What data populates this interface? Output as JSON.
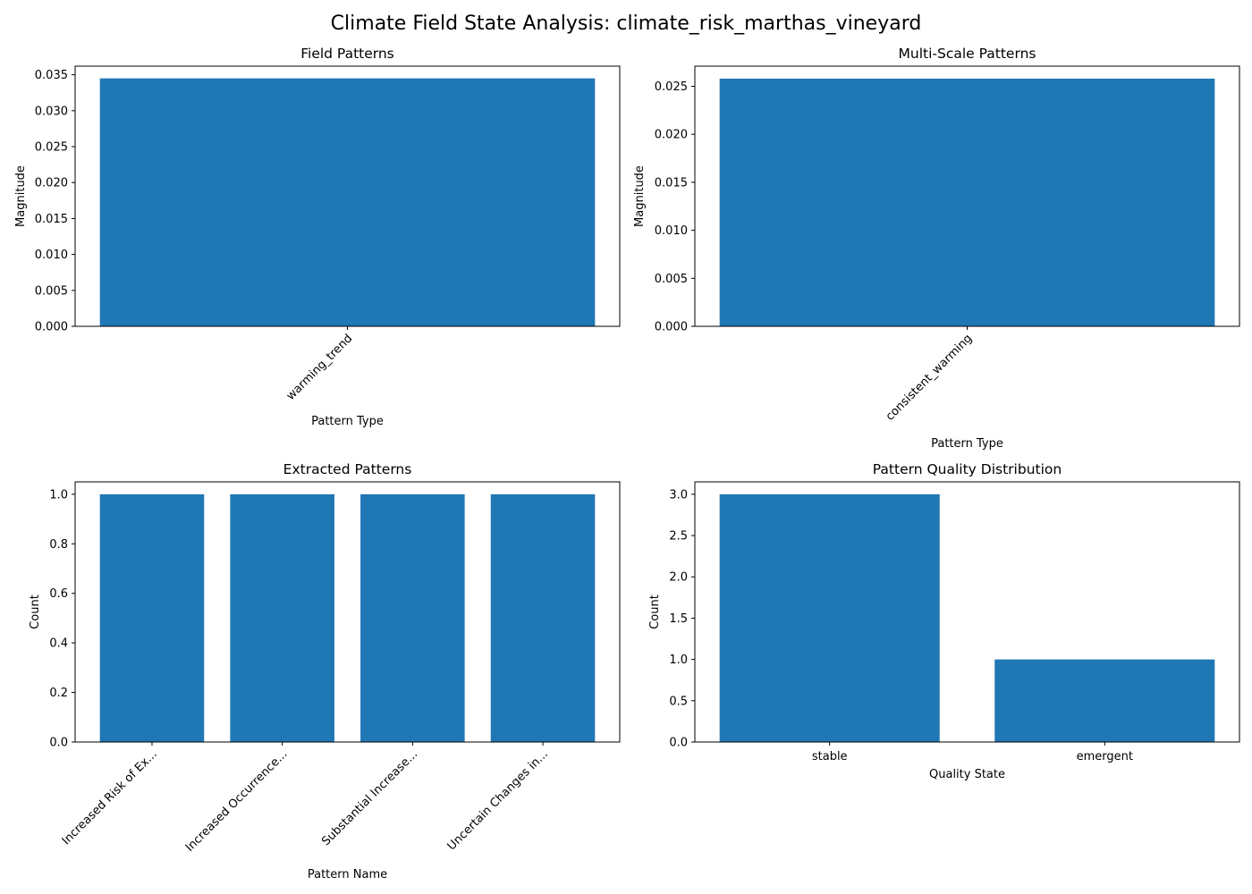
{
  "figure": {
    "title": "Climate Field State Analysis: climate_risk_marthas_vineyard"
  },
  "colors": {
    "bar": "#1f77b4",
    "axis": "#000000",
    "background": "#ffffff"
  },
  "chart_data": [
    {
      "id": "field-patterns",
      "type": "bar",
      "title": "Field Patterns",
      "xlabel": "Pattern Type",
      "ylabel": "Magnitude",
      "categories": [
        "warming_trend"
      ],
      "values": [
        0.0345
      ],
      "ylim": [
        0,
        0.0362
      ],
      "yticks": [
        "0.000",
        "0.005",
        "0.010",
        "0.015",
        "0.020",
        "0.025",
        "0.030",
        "0.035"
      ],
      "ytick_values": [
        0,
        0.005,
        0.01,
        0.015,
        0.02,
        0.025,
        0.03,
        0.035
      ],
      "xtick_rotation": 45,
      "grid": false,
      "legend": false
    },
    {
      "id": "multi-scale-patterns",
      "type": "bar",
      "title": "Multi-Scale Patterns",
      "xlabel": "Pattern Type",
      "ylabel": "Magnitude",
      "categories": [
        "consistent_warming"
      ],
      "values": [
        0.0258
      ],
      "ylim": [
        0,
        0.0271
      ],
      "yticks": [
        "0.000",
        "0.005",
        "0.010",
        "0.015",
        "0.020",
        "0.025"
      ],
      "ytick_values": [
        0,
        0.005,
        0.01,
        0.015,
        0.02,
        0.025
      ],
      "xtick_rotation": 45,
      "grid": false,
      "legend": false
    },
    {
      "id": "extracted-patterns",
      "type": "bar",
      "title": "Extracted Patterns",
      "xlabel": "Pattern Name",
      "ylabel": "Count",
      "categories": [
        "Increased Risk of Ex...",
        "Increased Occurrence...",
        "Substantial Increase...",
        "Uncertain Changes in..."
      ],
      "values": [
        1,
        1,
        1,
        1
      ],
      "ylim": [
        0,
        1.05
      ],
      "yticks": [
        "0.0",
        "0.2",
        "0.4",
        "0.6",
        "0.8",
        "1.0"
      ],
      "ytick_values": [
        0,
        0.2,
        0.4,
        0.6,
        0.8,
        1.0
      ],
      "xtick_rotation": 45,
      "grid": false,
      "legend": false
    },
    {
      "id": "pattern-quality-distribution",
      "type": "bar",
      "title": "Pattern Quality Distribution",
      "xlabel": "Quality State",
      "ylabel": "Count",
      "categories": [
        "stable",
        "emergent"
      ],
      "values": [
        3,
        1
      ],
      "ylim": [
        0,
        3.15
      ],
      "yticks": [
        "0.0",
        "0.5",
        "1.0",
        "1.5",
        "2.0",
        "2.5",
        "3.0"
      ],
      "ytick_values": [
        0,
        0.5,
        1.0,
        1.5,
        2.0,
        2.5,
        3.0
      ],
      "xtick_rotation": 0,
      "grid": false,
      "legend": false
    }
  ]
}
